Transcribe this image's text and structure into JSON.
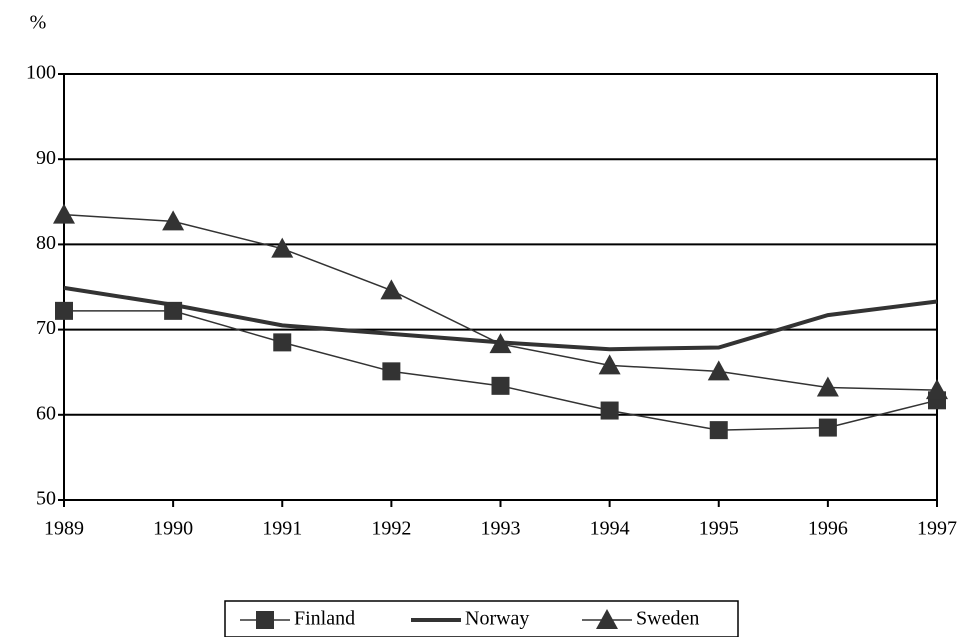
{
  "chart_data": {
    "type": "line",
    "y_label": "%",
    "x": [
      1989,
      1990,
      1991,
      1992,
      1993,
      1994,
      1995,
      1996,
      1997
    ],
    "xlim": [
      1989,
      1997
    ],
    "xticks": [
      1989,
      1990,
      1991,
      1992,
      1993,
      1994,
      1995,
      1996,
      1997
    ],
    "ylim": [
      50,
      100
    ],
    "yticks": [
      50,
      60,
      70,
      80,
      90,
      100
    ],
    "grid": true,
    "legend": "bottom",
    "series": [
      {
        "name": "Finland",
        "color": "#333333",
        "marker": "square",
        "line_width": 1.5,
        "values": [
          72.2,
          72.2,
          68.5,
          65.1,
          63.4,
          60.5,
          58.2,
          58.5,
          61.7
        ]
      },
      {
        "name": "Norway",
        "color": "#333333",
        "marker": "none",
        "line_width": 4,
        "values": [
          74.9,
          72.9,
          70.5,
          69.5,
          68.5,
          67.7,
          67.9,
          71.7,
          73.3
        ]
      },
      {
        "name": "Sweden",
        "color": "#333333",
        "marker": "triangle",
        "line_width": 1.5,
        "values": [
          83.5,
          82.7,
          79.5,
          74.6,
          68.3,
          65.8,
          65.1,
          63.2,
          62.9
        ]
      }
    ]
  }
}
